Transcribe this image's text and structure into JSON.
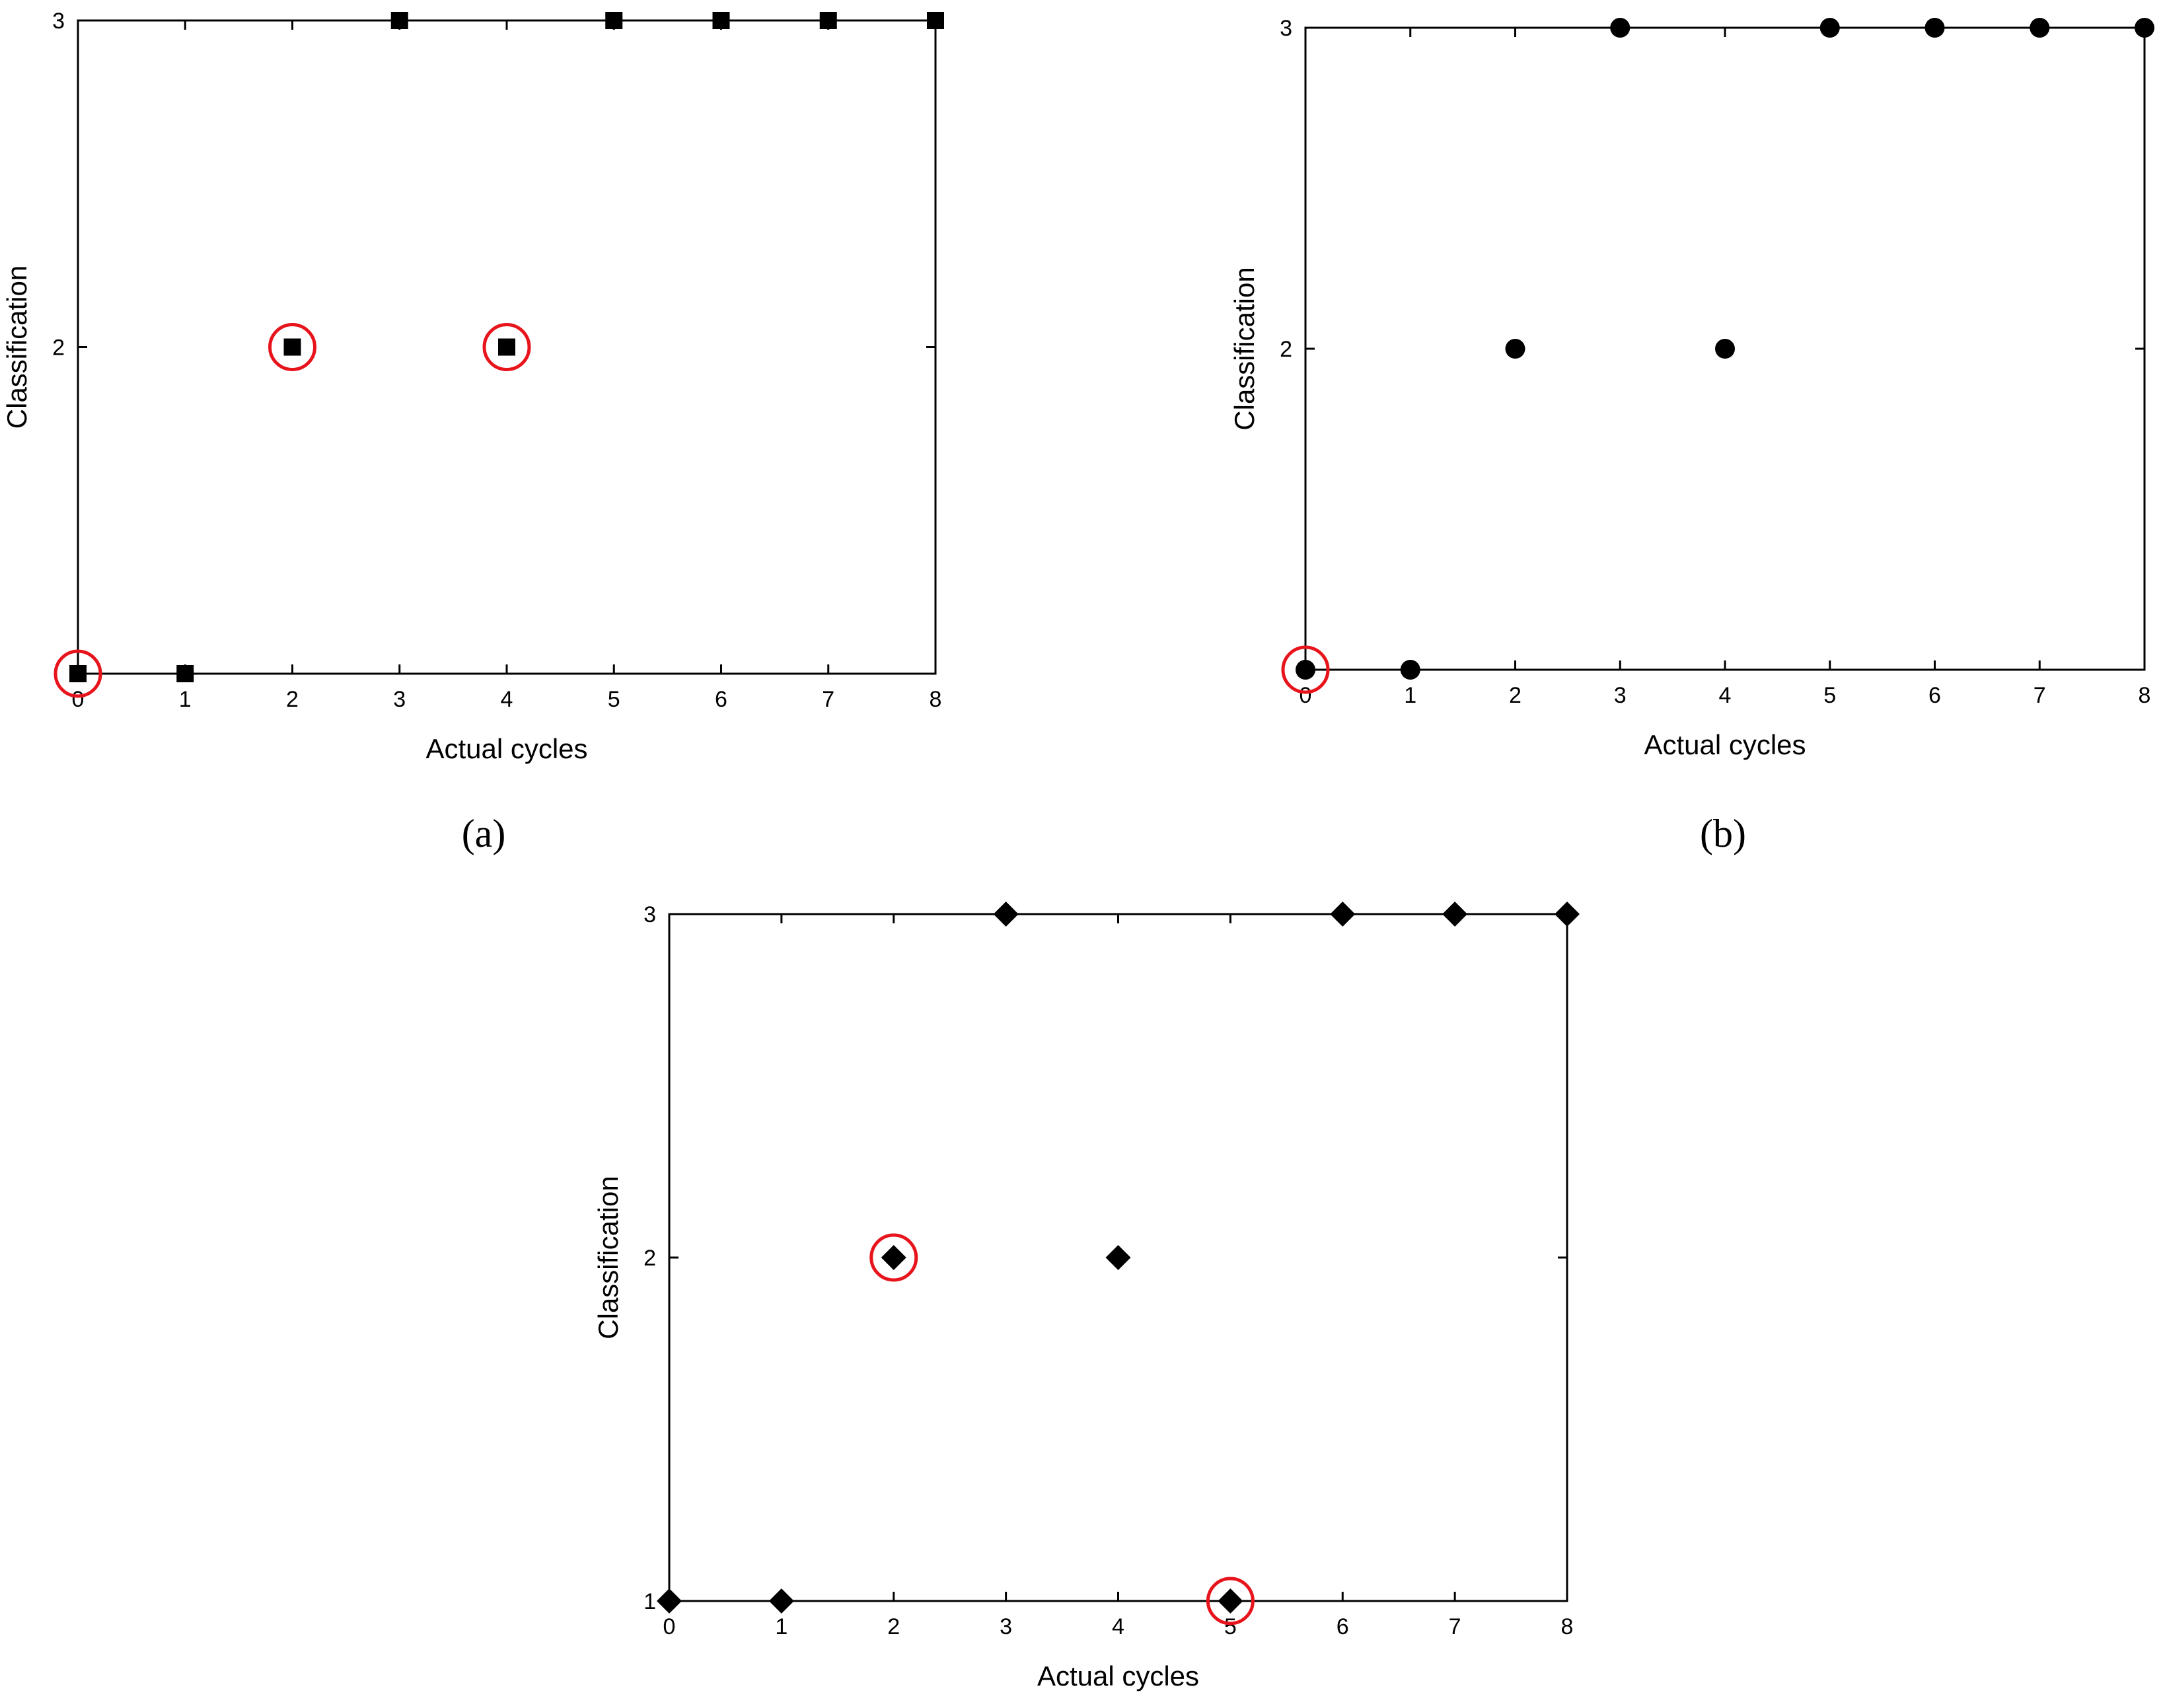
{
  "chart_data": [
    {
      "id": "a",
      "type": "scatter",
      "caption": "(a)",
      "xlabel": "Actual cycles",
      "ylabel": "Classification",
      "xlim": [
        0,
        8
      ],
      "ylim": [
        1,
        3
      ],
      "xticks": [
        "0",
        "1",
        "2",
        "3",
        "4",
        "5",
        "6",
        "7",
        "8"
      ],
      "yticks": [
        "",
        "2",
        "3"
      ],
      "marker": "square",
      "x": [
        0,
        1,
        2,
        3,
        4,
        5,
        6,
        7,
        8
      ],
      "y": [
        1,
        1,
        2,
        3,
        2,
        3,
        3,
        3,
        3
      ],
      "highlighted": [
        0,
        2,
        4
      ],
      "highlight_color": "#e8141c"
    },
    {
      "id": "b",
      "type": "scatter",
      "caption": "(b)",
      "xlabel": "Actual cycles",
      "ylabel": "Classification",
      "xlim": [
        0,
        8
      ],
      "ylim": [
        1,
        3
      ],
      "xticks": [
        "0",
        "1",
        "2",
        "3",
        "4",
        "5",
        "6",
        "7",
        "8"
      ],
      "yticks": [
        "",
        "2",
        "3"
      ],
      "marker": "circle",
      "x": [
        0,
        1,
        2,
        3,
        4,
        5,
        6,
        7,
        8
      ],
      "y": [
        1,
        1,
        2,
        3,
        2,
        3,
        3,
        3,
        3
      ],
      "highlighted": [
        0
      ],
      "highlight_color": "#e8141c"
    },
    {
      "id": "c",
      "type": "scatter",
      "caption": "",
      "xlabel": "Actual cycles",
      "ylabel": "Classification",
      "xlim": [
        0,
        8
      ],
      "ylim": [
        1,
        3
      ],
      "xticks": [
        "0",
        "1",
        "2",
        "3",
        "4",
        "5",
        "6",
        "7",
        "8"
      ],
      "yticks": [
        "1",
        "2",
        "3"
      ],
      "marker": "diamond",
      "x": [
        0,
        1,
        2,
        3,
        4,
        5,
        6,
        7,
        8
      ],
      "y": [
        1,
        1,
        2,
        3,
        2,
        1,
        3,
        3,
        3
      ],
      "highlighted": [
        2,
        5
      ],
      "highlight_color": "#e8141c"
    }
  ]
}
